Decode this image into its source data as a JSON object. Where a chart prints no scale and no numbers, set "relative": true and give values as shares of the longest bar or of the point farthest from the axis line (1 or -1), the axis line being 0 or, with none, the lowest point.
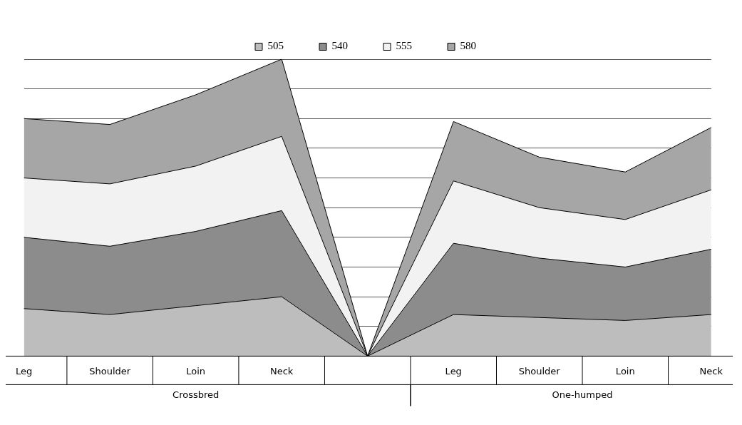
{
  "chart_data": {
    "type": "area",
    "stacked": true,
    "relative": true,
    "grid": "y",
    "legend": "top",
    "categories": [
      "Leg",
      "Shoulder",
      "Loin",
      "Neck",
      null,
      "Leg",
      "Shoulder",
      "Loin",
      "Neck"
    ],
    "annotations": [
      "Crossbred",
      "One-humped"
    ],
    "series": [
      {
        "name": "505",
        "color": "#bdbdbd",
        "values": [
          0.16,
          0.14,
          0.17,
          0.2,
          0,
          0.14,
          0.13,
          0.12,
          0.14
        ]
      },
      {
        "name": "540",
        "color": "#8c8c8c",
        "values": [
          0.24,
          0.23,
          0.25,
          0.29,
          0,
          0.24,
          0.2,
          0.18,
          0.22
        ]
      },
      {
        "name": "555",
        "color": "#f2f2f2",
        "values": [
          0.2,
          0.21,
          0.22,
          0.25,
          0,
          0.21,
          0.17,
          0.16,
          0.2
        ]
      },
      {
        "name": "580",
        "color": "#a6a6a6",
        "values": [
          0.2,
          0.2,
          0.24,
          0.26,
          0,
          0.2,
          0.17,
          0.16,
          0.21
        ]
      }
    ]
  }
}
